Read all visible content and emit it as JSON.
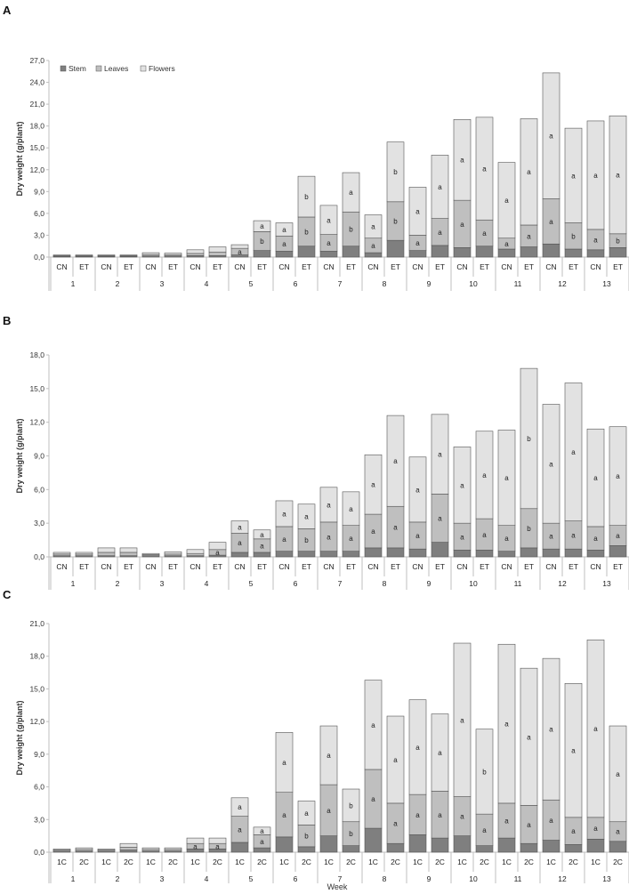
{
  "colors": {
    "stem": "#7f7f7f",
    "leaves": "#bfbfbf",
    "flowers": "#e2e2e2",
    "edge": "#555555"
  },
  "legend": [
    {
      "name": "Stem",
      "color_key": "stem"
    },
    {
      "name": "Leaves",
      "color_key": "leaves"
    },
    {
      "name": "Flowers",
      "color_key": "flowers"
    }
  ],
  "x_title": "Week",
  "chart_data": [
    {
      "type": "bar",
      "stacked": true,
      "panel_label": "A",
      "ylabel": "Dry weight (g/plant)",
      "ylim": [
        0,
        27
      ],
      "yticks": [
        "0,0",
        "3,0",
        "6,0",
        "9,0",
        "12,0",
        "15,0",
        "18,0",
        "21,0",
        "24,0",
        "27,0"
      ],
      "legend_position": "top-left",
      "weeks": [
        "1",
        "2",
        "3",
        "4",
        "5",
        "6",
        "7",
        "8",
        "9",
        "10",
        "11",
        "12",
        "13"
      ],
      "categories": [
        "CN",
        "ET",
        "CN",
        "ET",
        "CN",
        "ET",
        "CN",
        "ET",
        "CN",
        "ET",
        "CN",
        "ET",
        "CN",
        "ET",
        "CN",
        "ET",
        "CN",
        "ET",
        "CN",
        "ET",
        "CN",
        "ET",
        "CN",
        "ET",
        "CN",
        "ET"
      ],
      "series": [
        {
          "name": "Stem",
          "values": [
            0.1,
            0.1,
            0.1,
            0.1,
            0.15,
            0.15,
            0.2,
            0.2,
            0.3,
            0.9,
            0.8,
            1.5,
            0.8,
            1.5,
            0.6,
            2.3,
            0.9,
            1.6,
            1.3,
            1.5,
            1.1,
            1.4,
            1.8,
            1.1,
            1.0,
            1.3
          ]
        },
        {
          "name": "Leaves",
          "values": [
            0.1,
            0.1,
            0.1,
            0.1,
            0.2,
            0.15,
            0.3,
            0.5,
            0.9,
            2.6,
            2.1,
            4.0,
            2.3,
            4.7,
            2.0,
            5.3,
            2.1,
            3.7,
            6.5,
            3.6,
            1.5,
            3.0,
            6.2,
            3.6,
            2.8,
            1.9
          ]
        },
        {
          "name": "Flowers",
          "values": [
            0.1,
            0.1,
            0.1,
            0.1,
            0.25,
            0.25,
            0.5,
            0.7,
            0.5,
            1.5,
            1.8,
            5.6,
            4.0,
            5.4,
            3.2,
            8.2,
            6.6,
            8.7,
            11.1,
            14.1,
            10.4,
            14.6,
            17.3,
            13.0,
            14.9,
            16.2
          ]
        }
      ],
      "letters": [
        [
          "",
          "",
          "",
          "",
          "",
          "",
          "",
          "",
          "",
          "",
          "",
          "",
          "",
          "",
          "",
          "",
          "",
          "",
          "",
          "",
          "",
          "",
          "",
          "",
          "",
          ""
        ],
        [
          "",
          "",
          "",
          "",
          "a",
          "",
          "a",
          "a",
          "a",
          "b",
          "a",
          "b",
          "a",
          "b",
          "a",
          "b",
          "a",
          "a",
          "a",
          "a",
          "a",
          "a",
          "a",
          "b",
          "a",
          "b"
        ],
        [
          "",
          "",
          "",
          "",
          "",
          "",
          "",
          "",
          "a",
          "a",
          "a",
          "b",
          "a",
          "a",
          "a",
          "b",
          "a",
          "a",
          "a",
          "a",
          "a",
          "a",
          "a",
          "a",
          "a",
          "a"
        ]
      ]
    },
    {
      "type": "bar",
      "stacked": true,
      "panel_label": "B",
      "ylabel": "Dry weight (g/plant)",
      "ylim": [
        0,
        18
      ],
      "yticks": [
        "0,0",
        "3,0",
        "6,0",
        "9,0",
        "12,0",
        "15,0",
        "18,0"
      ],
      "weeks": [
        "1",
        "2",
        "3",
        "4",
        "5",
        "6",
        "7",
        "8",
        "9",
        "10",
        "11",
        "12",
        "13"
      ],
      "categories": [
        "CN",
        "ET",
        "CN",
        "ET",
        "CN",
        "ET",
        "CN",
        "ET",
        "CN",
        "ET",
        "CN",
        "ET",
        "CN",
        "ET",
        "CN",
        "ET",
        "CN",
        "ET",
        "CN",
        "ET",
        "CN",
        "ET",
        "CN",
        "ET",
        "CN",
        "ET"
      ],
      "series": [
        {
          "name": "Stem",
          "values": [
            0.1,
            0.1,
            0.1,
            0.1,
            0.1,
            0.1,
            0.1,
            0.15,
            0.4,
            0.4,
            0.5,
            0.5,
            0.5,
            0.5,
            0.8,
            0.8,
            0.7,
            1.3,
            0.6,
            0.6,
            0.5,
            0.8,
            0.7,
            0.7,
            0.6,
            1.0
          ]
        },
        {
          "name": "Leaves",
          "values": [
            0.15,
            0.15,
            0.3,
            0.3,
            0.1,
            0.15,
            0.2,
            0.5,
            1.7,
            1.2,
            2.2,
            2.0,
            2.6,
            2.3,
            3.0,
            3.7,
            2.4,
            4.3,
            2.4,
            2.8,
            2.3,
            3.5,
            2.3,
            2.5,
            2.1,
            1.8
          ]
        },
        {
          "name": "Flowers",
          "values": [
            0.15,
            0.15,
            0.4,
            0.4,
            0.1,
            0.2,
            0.35,
            0.65,
            1.1,
            0.8,
            2.3,
            2.2,
            3.1,
            3.0,
            5.3,
            8.1,
            5.8,
            7.1,
            6.8,
            7.8,
            8.5,
            12.5,
            10.6,
            12.3,
            8.7,
            8.8
          ]
        }
      ],
      "letters": [
        [
          "",
          "",
          "",
          "",
          "",
          "",
          "",
          "",
          "",
          "",
          "",
          "",
          "",
          "",
          "",
          "",
          "",
          "",
          "",
          "",
          "",
          "",
          "",
          "",
          "",
          ""
        ],
        [
          "",
          "",
          "a",
          "a",
          "",
          "",
          "",
          "a",
          "a",
          "a",
          "a",
          "b",
          "a",
          "a",
          "a",
          "a",
          "a",
          "a",
          "a",
          "a",
          "a",
          "b",
          "a",
          "a",
          "a",
          "a"
        ],
        [
          "",
          "",
          "",
          "",
          "",
          "",
          "",
          "",
          "a",
          "a",
          "a",
          "a",
          "a",
          "a",
          "a",
          "a",
          "a",
          "a",
          "a",
          "a",
          "a",
          "b",
          "a",
          "a",
          "a",
          "a"
        ]
      ]
    },
    {
      "type": "bar",
      "stacked": true,
      "panel_label": "C",
      "ylabel": "Dry weight (g/plant)",
      "xlabel": "Week",
      "ylim": [
        0,
        21
      ],
      "yticks": [
        "0,0",
        "3,0",
        "6,0",
        "9,0",
        "12,0",
        "15,0",
        "18,0",
        "21,0"
      ],
      "weeks": [
        "1",
        "2",
        "3",
        "4",
        "5",
        "6",
        "7",
        "8",
        "9",
        "10",
        "11",
        "12",
        "13"
      ],
      "categories": [
        "1C",
        "2C",
        "1C",
        "2C",
        "1C",
        "2C",
        "1C",
        "2C",
        "1C",
        "2C",
        "1C",
        "2C",
        "1C",
        "2C",
        "1C",
        "2C",
        "1C",
        "2C",
        "1C",
        "2C",
        "1C",
        "2C",
        "1C",
        "2C",
        "1C",
        "2C"
      ],
      "series": [
        {
          "name": "Stem",
          "values": [
            0.1,
            0.1,
            0.1,
            0.2,
            0.1,
            0.1,
            0.3,
            0.3,
            0.9,
            0.4,
            1.4,
            0.5,
            1.5,
            0.6,
            2.2,
            0.8,
            1.6,
            1.3,
            1.5,
            0.6,
            1.3,
            0.8,
            1.1,
            0.7,
            1.2,
            1.0
          ]
        },
        {
          "name": "Leaves",
          "values": [
            0.1,
            0.15,
            0.1,
            0.25,
            0.15,
            0.15,
            0.5,
            0.5,
            2.4,
            1.2,
            4.1,
            2.0,
            4.7,
            2.2,
            5.4,
            3.7,
            3.7,
            4.3,
            3.6,
            2.9,
            3.2,
            3.5,
            3.7,
            2.5,
            2.0,
            1.8
          ]
        },
        {
          "name": "Flowers",
          "values": [
            0.1,
            0.15,
            0.1,
            0.35,
            0.15,
            0.15,
            0.5,
            0.5,
            1.7,
            0.7,
            5.5,
            2.2,
            5.4,
            3.0,
            8.2,
            8.0,
            8.7,
            7.1,
            14.1,
            7.8,
            14.6,
            12.6,
            13.0,
            12.3,
            16.3,
            8.8
          ]
        }
      ],
      "letters": [
        [
          "",
          "",
          "",
          "",
          "",
          "",
          "",
          "",
          "",
          "",
          "",
          "",
          "",
          "",
          "",
          "",
          "",
          "",
          "",
          "",
          "",
          "",
          "",
          "",
          "",
          ""
        ],
        [
          "",
          "",
          "",
          "",
          "",
          "",
          "a",
          "a",
          "a",
          "a",
          "a",
          "b",
          "a",
          "b",
          "a",
          "a",
          "a",
          "a",
          "a",
          "a",
          "a",
          "a",
          "a",
          "a",
          "a",
          "a"
        ],
        [
          "",
          "",
          "",
          "a",
          "",
          "",
          "",
          "",
          "a",
          "a",
          "a",
          "a",
          "a",
          "b",
          "a",
          "a",
          "a",
          "a",
          "a",
          "b",
          "a",
          "a",
          "a",
          "a",
          "a",
          "a"
        ]
      ]
    }
  ]
}
